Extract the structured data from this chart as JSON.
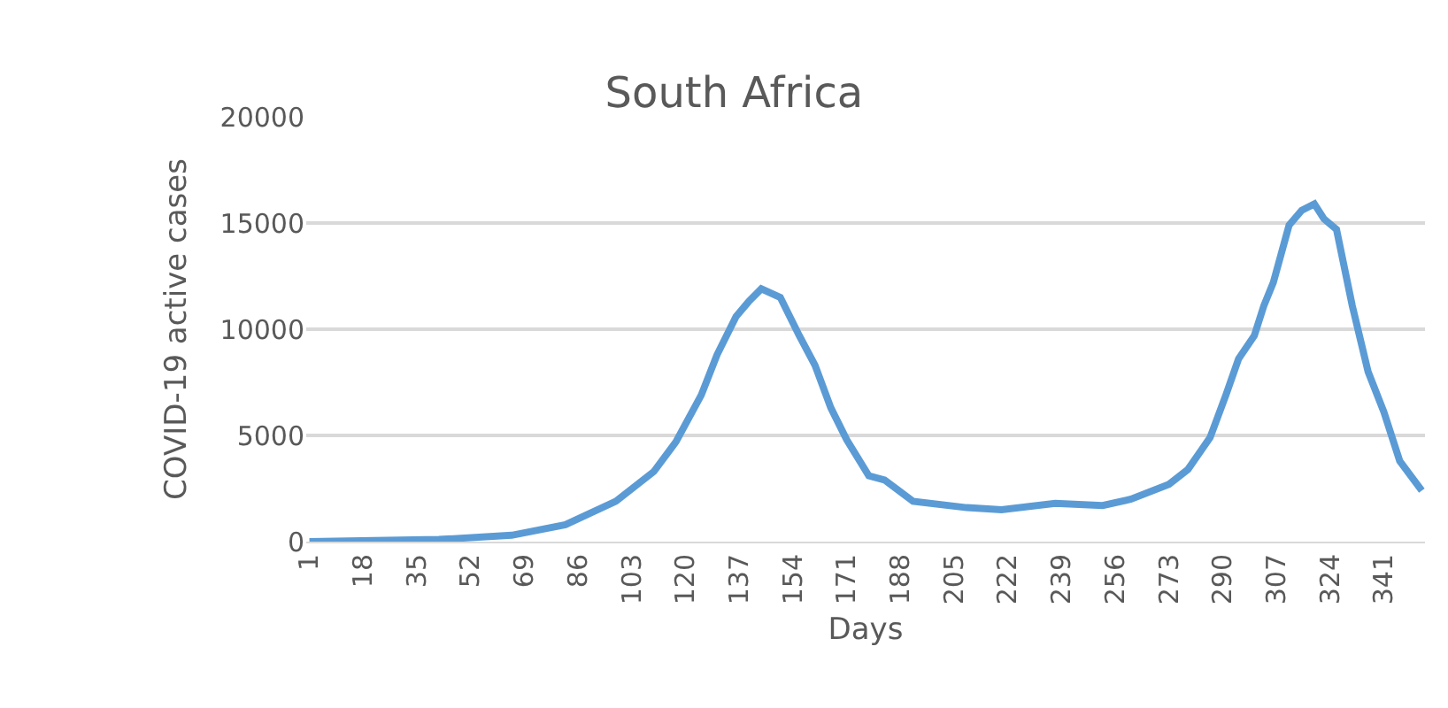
{
  "chart_data": {
    "type": "line",
    "title": "South Africa",
    "xlabel": "Days",
    "ylabel": "COVID-19 active cases",
    "series": [
      {
        "color": "#5b9bd5",
        "x": [
          1,
          42,
          65,
          82,
          98,
          110,
          117,
          125,
          130,
          136,
          140,
          144,
          150,
          156,
          161,
          166,
          171,
          178,
          183,
          192,
          209,
          220,
          237,
          252,
          261,
          273,
          279,
          286,
          291,
          295,
          300,
          303,
          306,
          311,
          315,
          319,
          322,
          326,
          331,
          336,
          341,
          346,
          353
        ],
        "values": [
          0,
          100,
          300,
          800,
          1900,
          3300,
          4700,
          6900,
          8800,
          10600,
          11300,
          11900,
          11500,
          9700,
          8300,
          6300,
          4800,
          3100,
          2900,
          1900,
          1600,
          1500,
          1800,
          1700,
          2000,
          2700,
          3400,
          4900,
          6900,
          8600,
          9700,
          11100,
          12200,
          14900,
          15600,
          15900,
          15200,
          14700,
          11100,
          8000,
          6100,
          3800,
          2400
        ]
      }
    ],
    "xlim": [
      0,
      354
    ],
    "xticks": [
      1,
      18,
      35,
      52,
      69,
      86,
      103,
      120,
      137,
      154,
      171,
      188,
      205,
      222,
      239,
      256,
      273,
      290,
      307,
      324,
      341
    ],
    "ylim": [
      0,
      20000
    ],
    "yticks": [
      0,
      5000,
      10000,
      15000,
      20000
    ],
    "grid": "y",
    "marker": "none",
    "line_style": "solid"
  }
}
